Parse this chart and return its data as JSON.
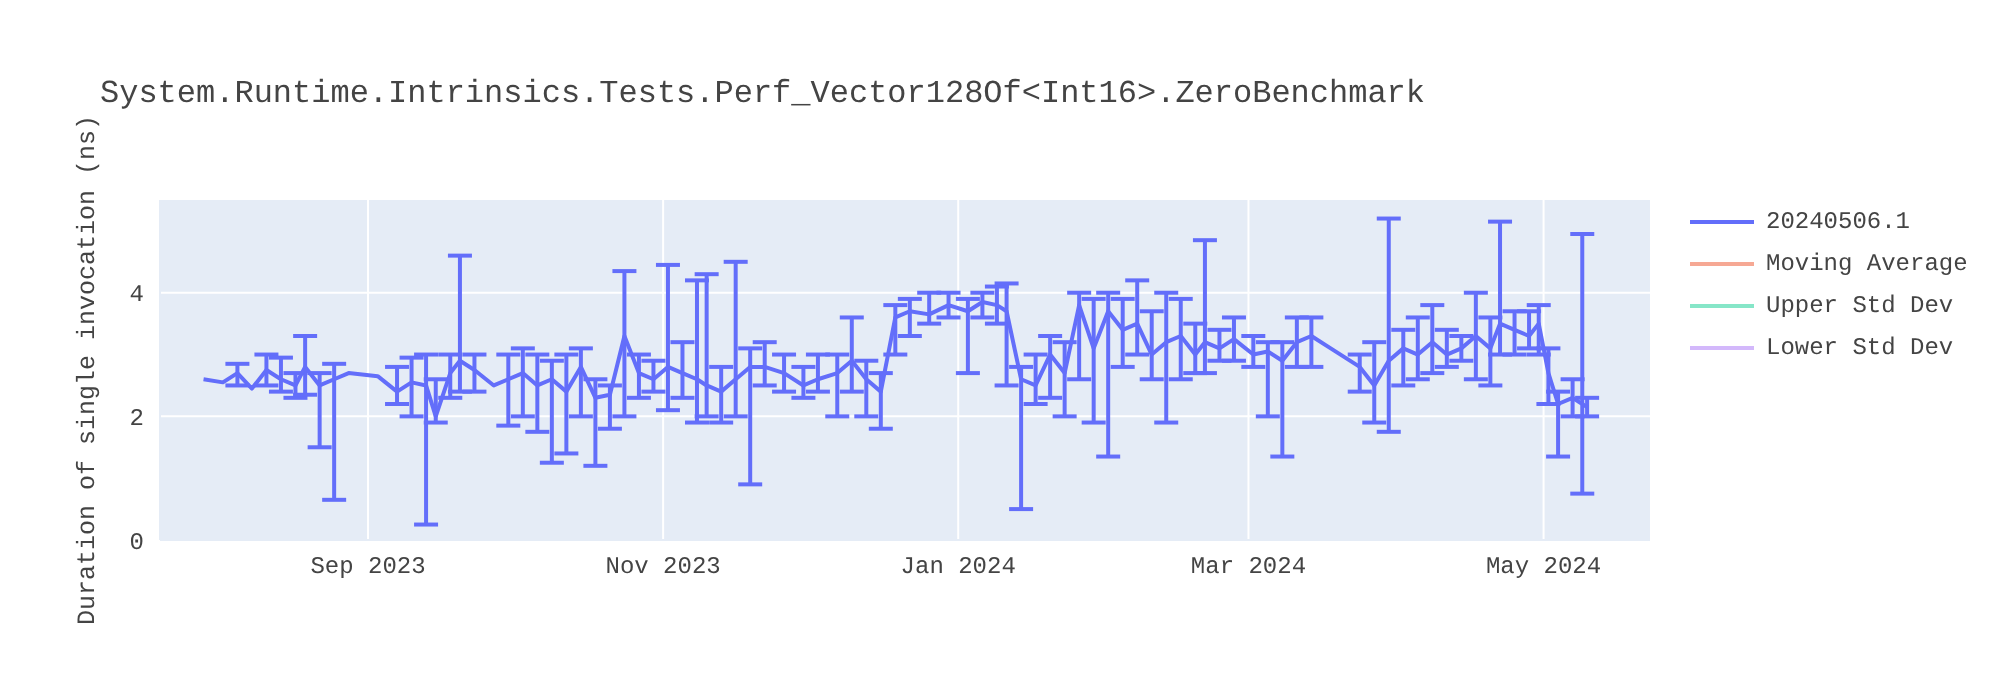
{
  "chart_data": {
    "type": "line",
    "title": "System.Runtime.Intrinsics.Tests.Perf_Vector128Of<Int16>.ZeroBenchmark",
    "ylabel": "Duration of single invocation (ns)",
    "x": [
      "2023-07-29",
      "2023-08-02",
      "2023-08-05",
      "2023-08-08",
      "2023-08-11",
      "2023-08-14",
      "2023-08-17",
      "2023-08-19",
      "2023-08-22",
      "2023-08-25",
      "2023-08-28",
      "2023-09-03",
      "2023-09-07",
      "2023-09-10",
      "2023-09-13",
      "2023-09-15",
      "2023-09-18",
      "2023-09-20",
      "2023-09-23",
      "2023-09-27",
      "2023-09-30",
      "2023-10-03",
      "2023-10-06",
      "2023-10-09",
      "2023-10-12",
      "2023-10-15",
      "2023-10-18",
      "2023-10-21",
      "2023-10-24",
      "2023-10-27",
      "2023-10-30",
      "2023-11-02",
      "2023-11-05",
      "2023-11-08",
      "2023-11-10",
      "2023-11-13",
      "2023-11-16",
      "2023-11-19",
      "2023-11-22",
      "2023-11-26",
      "2023-11-30",
      "2023-12-03",
      "2023-12-07",
      "2023-12-10",
      "2023-12-13",
      "2023-12-16",
      "2023-12-19",
      "2023-12-22",
      "2023-12-26",
      "2023-12-30",
      "2024-01-03",
      "2024-01-06",
      "2024-01-09",
      "2024-01-11",
      "2024-01-14",
      "2024-01-17",
      "2024-01-20",
      "2024-01-23",
      "2024-01-26",
      "2024-01-29",
      "2024-02-01",
      "2024-02-04",
      "2024-02-07",
      "2024-02-10",
      "2024-02-13",
      "2024-02-16",
      "2024-02-19",
      "2024-02-21",
      "2024-02-24",
      "2024-02-27",
      "2024-03-02",
      "2024-03-05",
      "2024-03-08",
      "2024-03-11",
      "2024-03-14",
      "2024-03-18",
      "2024-03-24",
      "2024-03-27",
      "2024-03-30",
      "2024-04-02",
      "2024-04-05",
      "2024-04-08",
      "2024-04-11",
      "2024-04-14",
      "2024-04-17",
      "2024-04-20",
      "2024-04-22",
      "2024-04-25",
      "2024-04-28",
      "2024-04-30",
      "2024-05-02",
      "2024-05-04",
      "2024-05-07",
      "2024-05-09",
      "2024-05-10"
    ],
    "series": [
      {
        "name": "20240506.1",
        "color": "#636efa",
        "values": [
          2.6,
          2.55,
          2.7,
          2.45,
          2.75,
          2.6,
          2.5,
          2.8,
          2.5,
          2.6,
          2.7,
          2.65,
          2.4,
          2.55,
          2.5,
          2.0,
          2.7,
          2.9,
          2.75,
          2.5,
          2.6,
          2.7,
          2.5,
          2.6,
          2.4,
          2.8,
          2.3,
          2.35,
          3.3,
          2.7,
          2.6,
          2.8,
          2.7,
          2.6,
          2.5,
          2.4,
          2.6,
          2.8,
          2.8,
          2.7,
          2.5,
          2.6,
          2.7,
          2.9,
          2.6,
          2.4,
          3.6,
          3.7,
          3.65,
          3.8,
          3.7,
          3.85,
          3.8,
          3.7,
          2.6,
          2.5,
          3.0,
          2.7,
          3.8,
          3.1,
          3.7,
          3.4,
          3.5,
          3.0,
          3.2,
          3.3,
          3.0,
          3.2,
          3.1,
          3.25,
          3.0,
          3.05,
          2.9,
          3.2,
          3.3,
          3.1,
          2.8,
          2.5,
          2.9,
          3.1,
          3.0,
          3.2,
          3.0,
          3.1,
          3.3,
          3.1,
          3.5,
          3.4,
          3.3,
          3.5,
          2.7,
          2.2,
          2.3,
          2.2,
          2.15
        ],
        "errors": [
          null,
          null,
          [
            2.5,
            2.85
          ],
          null,
          [
            2.5,
            3.0
          ],
          [
            2.4,
            2.95
          ],
          [
            2.3,
            2.7
          ],
          [
            2.35,
            3.3
          ],
          [
            1.5,
            2.7
          ],
          [
            0.65,
            2.85
          ],
          null,
          null,
          [
            2.2,
            2.8
          ],
          [
            2.0,
            2.95
          ],
          [
            0.25,
            3.0
          ],
          [
            1.9,
            2.6
          ],
          [
            2.3,
            3.0
          ],
          [
            2.4,
            4.6
          ],
          [
            2.4,
            3.0
          ],
          null,
          [
            1.85,
            3.0
          ],
          [
            2.0,
            3.1
          ],
          [
            1.75,
            3.0
          ],
          [
            1.25,
            2.9
          ],
          [
            1.4,
            3.0
          ],
          [
            2.0,
            3.1
          ],
          [
            1.2,
            2.6
          ],
          [
            1.8,
            2.5
          ],
          [
            2.0,
            4.35
          ],
          [
            2.3,
            3.0
          ],
          [
            2.4,
            2.9
          ],
          [
            2.1,
            4.45
          ],
          [
            2.3,
            3.2
          ],
          [
            1.9,
            4.2
          ],
          [
            2.0,
            4.3
          ],
          [
            1.9,
            2.8
          ],
          [
            2.0,
            4.5
          ],
          [
            0.9,
            3.1
          ],
          [
            2.5,
            3.2
          ],
          [
            2.4,
            3.0
          ],
          [
            2.3,
            2.8
          ],
          [
            2.4,
            3.0
          ],
          [
            2.0,
            3.0
          ],
          [
            2.4,
            3.6
          ],
          [
            2.0,
            2.9
          ],
          [
            1.8,
            2.7
          ],
          [
            3.0,
            3.8
          ],
          [
            3.3,
            3.9
          ],
          [
            3.5,
            4.0
          ],
          [
            3.6,
            4.0
          ],
          [
            2.7,
            3.9
          ],
          [
            3.6,
            4.0
          ],
          [
            3.5,
            4.1
          ],
          [
            2.5,
            4.15
          ],
          [
            0.5,
            2.8
          ],
          [
            2.2,
            3.0
          ],
          [
            2.3,
            3.3
          ],
          [
            2.0,
            3.2
          ],
          [
            2.6,
            4.0
          ],
          [
            1.9,
            3.9
          ],
          [
            1.35,
            4.0
          ],
          [
            2.8,
            3.9
          ],
          [
            3.0,
            4.2
          ],
          [
            2.6,
            3.7
          ],
          [
            1.9,
            4.0
          ],
          [
            2.6,
            3.9
          ],
          [
            2.7,
            3.5
          ],
          [
            2.7,
            4.85
          ],
          [
            2.9,
            3.4
          ],
          [
            2.9,
            3.6
          ],
          [
            2.8,
            3.3
          ],
          [
            2.0,
            3.2
          ],
          [
            1.35,
            3.2
          ],
          [
            2.8,
            3.6
          ],
          [
            2.8,
            3.6
          ],
          null,
          [
            2.4,
            3.0
          ],
          [
            1.9,
            3.2
          ],
          [
            1.75,
            5.2
          ],
          [
            2.5,
            3.4
          ],
          [
            2.6,
            3.6
          ],
          [
            2.7,
            3.8
          ],
          [
            2.8,
            3.4
          ],
          [
            2.9,
            3.3
          ],
          [
            2.6,
            4.0
          ],
          [
            2.5,
            3.6
          ],
          [
            3.0,
            5.15
          ],
          [
            3.0,
            3.7
          ],
          [
            3.1,
            3.7
          ],
          [
            3.0,
            3.8
          ],
          [
            2.2,
            3.1
          ],
          [
            1.35,
            2.4
          ],
          [
            2.0,
            2.6
          ],
          [
            0.75,
            4.95
          ],
          [
            2.0,
            2.3
          ]
        ]
      },
      {
        "name": "Moving Average",
        "color": "#f6a894",
        "values": [
          null,
          null,
          null,
          null,
          null,
          null,
          null,
          null,
          null,
          null,
          null,
          null,
          null,
          null,
          null,
          null,
          null,
          null,
          null,
          null,
          null,
          null,
          null,
          null,
          null,
          null,
          null,
          null,
          null,
          null,
          null,
          null,
          null,
          null,
          null,
          null,
          null,
          null,
          null,
          null,
          null,
          null,
          null,
          null,
          null,
          null,
          null,
          null,
          null,
          null,
          null,
          null,
          null,
          null,
          null,
          null,
          null,
          null,
          null,
          null,
          null,
          null,
          null,
          null,
          null,
          null,
          null,
          null,
          null,
          null,
          null,
          null,
          null,
          null,
          null,
          null,
          null,
          null,
          null,
          null,
          null,
          null,
          null,
          null,
          null,
          null,
          null,
          null,
          null,
          null,
          null,
          null,
          null,
          null,
          null
        ]
      },
      {
        "name": "Upper Std Dev",
        "color": "#86e6c8",
        "values": [
          null,
          null,
          null,
          null,
          null,
          null,
          null,
          null,
          null,
          null,
          null,
          null,
          null,
          null,
          null,
          null,
          null,
          null,
          null,
          null,
          null,
          null,
          null,
          null,
          null,
          null,
          null,
          null,
          null,
          null,
          null,
          null,
          null,
          null,
          null,
          null,
          null,
          null,
          null,
          null,
          null,
          null,
          null,
          null,
          null,
          null,
          null,
          null,
          null,
          null,
          null,
          null,
          null,
          null,
          null,
          null,
          null,
          null,
          null,
          null,
          null,
          null,
          null,
          null,
          null,
          null,
          null,
          null,
          null,
          null,
          null,
          null,
          null,
          null,
          null,
          null,
          null,
          null,
          null,
          null,
          null,
          null,
          null,
          null,
          null,
          null,
          null,
          null,
          null,
          null,
          null,
          null,
          null,
          null,
          null
        ]
      },
      {
        "name": "Lower Std Dev",
        "color": "#d3b8fb",
        "values": [
          null,
          null,
          null,
          null,
          null,
          null,
          null,
          null,
          null,
          null,
          null,
          null,
          null,
          null,
          null,
          null,
          null,
          null,
          null,
          null,
          null,
          null,
          null,
          null,
          null,
          null,
          null,
          null,
          null,
          null,
          null,
          null,
          null,
          null,
          null,
          null,
          null,
          null,
          null,
          null,
          null,
          null,
          null,
          null,
          null,
          null,
          null,
          null,
          null,
          null,
          null,
          null,
          null,
          null,
          null,
          null,
          null,
          null,
          null,
          null,
          null,
          null,
          null,
          null,
          null,
          null,
          null,
          null,
          null,
          null,
          null,
          null,
          null,
          null,
          null,
          null,
          null,
          null,
          null,
          null,
          null,
          null,
          null,
          null,
          null,
          null,
          null,
          null,
          null,
          null,
          null,
          null,
          null,
          null,
          null
        ]
      }
    ],
    "xlim": [
      "2023-07-20",
      "2024-05-23"
    ],
    "xticks": [
      {
        "value": "2023-09-01",
        "label": "Sep 2023"
      },
      {
        "value": "2023-11-01",
        "label": "Nov 2023"
      },
      {
        "value": "2024-01-01",
        "label": "Jan 2024"
      },
      {
        "value": "2024-03-01",
        "label": "Mar 2024"
      },
      {
        "value": "2024-05-01",
        "label": "May 2024"
      }
    ],
    "ylim": [
      0,
      5.5
    ],
    "yticks": [
      0,
      2,
      4
    ],
    "grid": true,
    "legend": "top right",
    "marker": "none",
    "line_style": "solid"
  }
}
